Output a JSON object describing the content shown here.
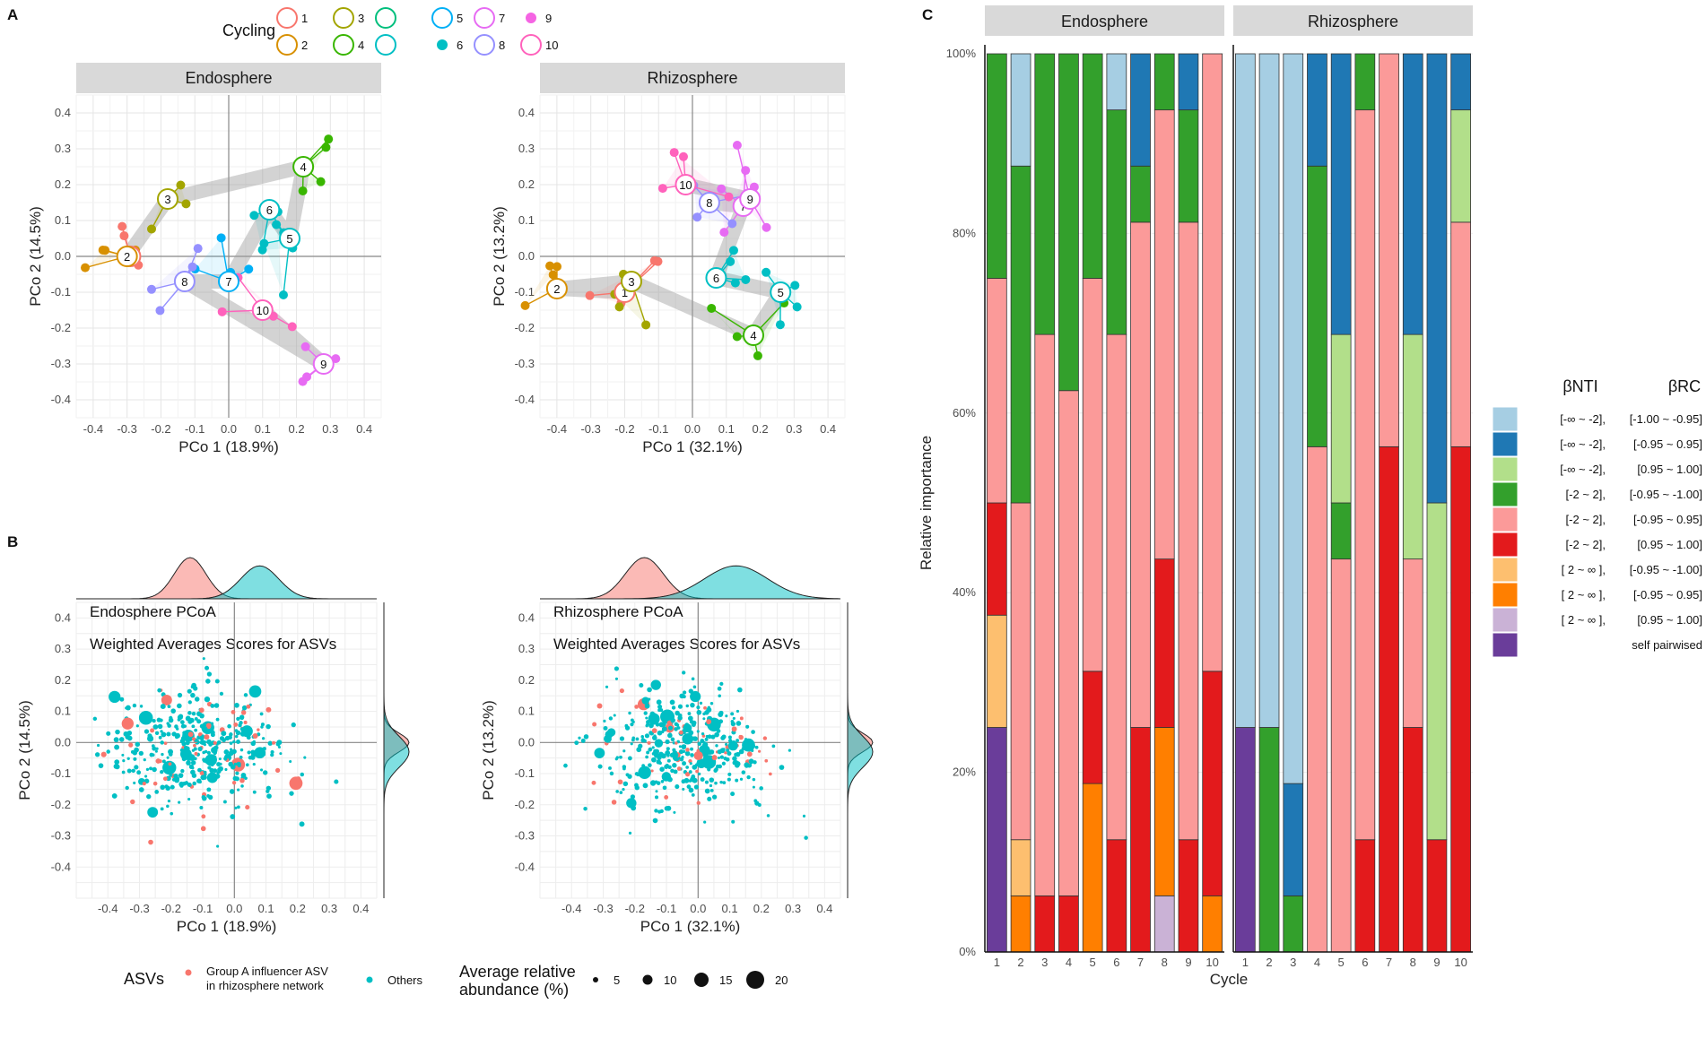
{
  "figure": {
    "panel_labels": [
      "A",
      "B",
      "C"
    ],
    "cycling_legend": {
      "title": "Cycling",
      "items": [
        {
          "label": "1",
          "color": "#F8766D"
        },
        {
          "label": "2",
          "color": "#D89000"
        },
        {
          "label": "3",
          "color": "#A3A500"
        },
        {
          "label": "4",
          "color": "#39B600"
        },
        {
          "label": "",
          "color": "#00BF7D"
        },
        {
          "label": "",
          "color": "#00BFC4"
        },
        {
          "label": "5",
          "color": "#00B0F6"
        },
        {
          "label": "6",
          "color": "#00BFC4"
        },
        {
          "label": "7",
          "color": "#E76BF3"
        },
        {
          "label": "8",
          "color": "#9590FF"
        },
        {
          "label": "9",
          "color": "#F564E3"
        },
        {
          "label": "10",
          "color": "#FF62BC"
        }
      ]
    },
    "asv_legend": {
      "title": "ASVs",
      "group_a_line1": "Group A influencer ASV",
      "group_a_line2": "in rhizosphere network",
      "others": "Others",
      "group_a_color": "#F8766D",
      "others_color": "#00BFC4"
    },
    "size_legend": {
      "title_line1": "Average relative",
      "title_line2": "abundance (%)",
      "sizes": [
        "5",
        "10",
        "15",
        "20"
      ]
    },
    "ordination_A": [
      {
        "strip": "Endosphere",
        "xlabel": "PCo 1 (18.9%)",
        "ylabel": "PCo 2 (14.5%)",
        "xticks": [
          "-0.4",
          "-0.3",
          "-0.2",
          "-0.1",
          "0.0",
          "0.1",
          "0.2",
          "0.3",
          "0.4"
        ],
        "yticks": [
          "0.4",
          "0.3",
          "0.2",
          "0.1",
          "0.0",
          "-0.1",
          "-0.2",
          "-0.3",
          "-0.4"
        ]
      },
      {
        "strip": "Rhizosphere",
        "xlabel": "PCo 1 (32.1%)",
        "ylabel": "PCo 2 (13.2%)",
        "xticks": [
          "-0.4",
          "-0.3",
          "-0.2",
          "-0.1",
          "0.0",
          "0.1",
          "0.2",
          "0.3",
          "0.4"
        ],
        "yticks": [
          "0.4",
          "0.3",
          "0.2",
          "0.1",
          "0.0",
          "-0.1",
          "-0.2",
          "-0.3",
          "-0.4"
        ]
      }
    ],
    "ordination_B": [
      {
        "title": "Endosphere PCoA",
        "subtitle": "Weighted Averages Scores for ASVs",
        "xlabel": "PCo 1 (18.9%)",
        "ylabel": "PCo 2 (14.5%)"
      },
      {
        "title": "Rhizosphere PCoA",
        "subtitle": "Weighted Averages Scores for ASVs",
        "xlabel": "PCo 1 (32.1%)",
        "ylabel": "PCo 2 (13.2%)"
      }
    ]
  },
  "chart_data": [
    {
      "type": "scatter",
      "panel": "A-Endosphere",
      "title": "Endosphere",
      "xlabel": "PCo 1 (18.9%)",
      "ylabel": "PCo 2 (14.5%)",
      "xlim": [
        -0.45,
        0.45
      ],
      "ylim": [
        -0.45,
        0.45
      ],
      "centroids": [
        {
          "label": "1",
          "x": -0.29,
          "y": 0.0,
          "color": "#F8766D"
        },
        {
          "label": "2",
          "x": -0.3,
          "y": 0.0,
          "color": "#D89000"
        },
        {
          "label": "3",
          "x": -0.18,
          "y": 0.16,
          "color": "#A3A500"
        },
        {
          "label": "4",
          "x": 0.22,
          "y": 0.25,
          "color": "#39B600"
        },
        {
          "label": "5",
          "x": 0.18,
          "y": 0.05,
          "color": "#00BFC4"
        },
        {
          "label": "6",
          "x": 0.12,
          "y": 0.13,
          "color": "#00BFC4"
        },
        {
          "label": "7",
          "x": 0.0,
          "y": -0.07,
          "color": "#00B0F6"
        },
        {
          "label": "8",
          "x": -0.13,
          "y": -0.07,
          "color": "#9590FF"
        },
        {
          "label": "9",
          "x": 0.28,
          "y": -0.3,
          "color": "#E76BF3"
        },
        {
          "label": "10",
          "x": 0.1,
          "y": -0.15,
          "color": "#FF62BC"
        }
      ]
    },
    {
      "type": "scatter",
      "panel": "A-Rhizosphere",
      "title": "Rhizosphere",
      "xlabel": "PCo 1 (32.1%)",
      "ylabel": "PCo 2 (13.2%)",
      "xlim": [
        -0.45,
        0.45
      ],
      "ylim": [
        -0.45,
        0.45
      ],
      "centroids": [
        {
          "label": "1",
          "x": -0.2,
          "y": -0.1,
          "color": "#F8766D"
        },
        {
          "label": "2",
          "x": -0.4,
          "y": -0.09,
          "color": "#D89000"
        },
        {
          "label": "3",
          "x": -0.18,
          "y": -0.07,
          "color": "#A3A500"
        },
        {
          "label": "4",
          "x": 0.18,
          "y": -0.22,
          "color": "#39B600"
        },
        {
          "label": "5",
          "x": 0.26,
          "y": -0.1,
          "color": "#00BFC4"
        },
        {
          "label": "6",
          "x": 0.07,
          "y": -0.06,
          "color": "#00BFC4"
        },
        {
          "label": "7",
          "x": 0.15,
          "y": 0.14,
          "color": "#E76BF3"
        },
        {
          "label": "8",
          "x": 0.05,
          "y": 0.15,
          "color": "#9590FF"
        },
        {
          "label": "9",
          "x": 0.17,
          "y": 0.16,
          "color": "#E76BF3"
        },
        {
          "label": "10",
          "x": -0.02,
          "y": 0.2,
          "color": "#FF62BC"
        }
      ]
    },
    {
      "type": "scatter",
      "panel": "B-Endosphere",
      "title": "Endosphere PCoA",
      "subtitle": "Weighted Averages Scores for ASVs",
      "xlabel": "PCo 1 (18.9%)",
      "ylabel": "PCo 2 (14.5%)",
      "xlim": [
        -0.5,
        0.45
      ],
      "ylim": [
        -0.5,
        0.45
      ]
    },
    {
      "type": "scatter",
      "panel": "B-Rhizosphere",
      "title": "Rhizosphere PCoA",
      "subtitle": "Weighted Averages Scores for ASVs",
      "xlabel": "PCo 1 (32.1%)",
      "ylabel": "PCo 2 (13.2%)",
      "xlim": [
        -0.5,
        0.45
      ],
      "ylim": [
        -0.5,
        0.45
      ]
    },
    {
      "type": "bar",
      "panel": "C",
      "stacked": true,
      "facets": [
        "Endosphere",
        "Rhizosphere"
      ],
      "categories": [
        "1",
        "2",
        "3",
        "4",
        "5",
        "6",
        "7",
        "8",
        "9",
        "10"
      ],
      "xlabel": "Cycle",
      "ylabel": "Relative importance",
      "ylim": [
        0,
        100
      ],
      "yticks": [
        "0%",
        "20%",
        "40%",
        "60%",
        "80%",
        "100%"
      ],
      "legend": {
        "header_bnti": "βNTI",
        "header_brc": "βRC",
        "entries": [
          {
            "key": "A",
            "bnti": "[-∞ ~ -2],",
            "brc": "[-1.00 ~ -0.95]",
            "color": "#A6CEE3"
          },
          {
            "key": "B",
            "bnti": "[-∞ ~ -2],",
            "brc": "[-0.95 ~ 0.95]",
            "color": "#1F78B4"
          },
          {
            "key": "C",
            "bnti": "[-∞ ~ -2],",
            "brc": "[0.95 ~ 1.00]",
            "color": "#B2DF8A"
          },
          {
            "key": "D",
            "bnti": "[-2 ~ 2],",
            "brc": "[-0.95 ~ -1.00]",
            "color": "#33A02C"
          },
          {
            "key": "E",
            "bnti": "[-2 ~ 2],",
            "brc": "[-0.95 ~ 0.95]",
            "color": "#FB9A99"
          },
          {
            "key": "F",
            "bnti": "[-2 ~ 2],",
            "brc": "[0.95 ~ 1.00]",
            "color": "#E31A1C"
          },
          {
            "key": "G",
            "bnti": "[ 2 ~ ∞ ],",
            "brc": "[-0.95 ~ -1.00]",
            "color": "#FDBF6F"
          },
          {
            "key": "H",
            "bnti": "[ 2 ~ ∞ ],",
            "brc": "[-0.95 ~ 0.95]",
            "color": "#FF7F00"
          },
          {
            "key": "I",
            "bnti": "[ 2 ~ ∞ ],",
            "brc": "[0.95 ~ 1.00]",
            "color": "#CAB2D6"
          },
          {
            "key": "J",
            "bnti": "",
            "brc": "self pairwised",
            "color": "#6A3D9A"
          }
        ]
      },
      "series": {
        "Endosphere": [
          [
            [
              "J",
              25
            ],
            [
              "G",
              12.5
            ],
            [
              "F",
              12.5
            ],
            [
              "E",
              25
            ],
            [
              "D",
              25
            ]
          ],
          [
            [
              "H",
              6.25
            ],
            [
              "G",
              6.25
            ],
            [
              "E",
              37.5
            ],
            [
              "D",
              37.5
            ],
            [
              "A",
              12.5
            ]
          ],
          [
            [
              "F",
              6.25
            ],
            [
              "E",
              62.5
            ],
            [
              "D",
              31.25
            ]
          ],
          [
            [
              "F",
              6.25
            ],
            [
              "E",
              56.25
            ],
            [
              "D",
              37.5
            ]
          ],
          [
            [
              "H",
              18.75
            ],
            [
              "F",
              12.5
            ],
            [
              "E",
              43.75
            ],
            [
              "D",
              25
            ]
          ],
          [
            [
              "F",
              12.5
            ],
            [
              "E",
              56.25
            ],
            [
              "D",
              25
            ],
            [
              "A",
              6.25
            ]
          ],
          [
            [
              "F",
              25
            ],
            [
              "E",
              56.25
            ],
            [
              "D",
              6.25
            ],
            [
              "B",
              12.5
            ]
          ],
          [
            [
              "I",
              6.25
            ],
            [
              "H",
              18.75
            ],
            [
              "F",
              18.75
            ],
            [
              "E",
              50
            ],
            [
              "D",
              6.25
            ]
          ],
          [
            [
              "F",
              12.5
            ],
            [
              "E",
              68.75
            ],
            [
              "D",
              12.5
            ],
            [
              "B",
              6.25
            ]
          ],
          [
            [
              "H",
              6.25
            ],
            [
              "F",
              25
            ],
            [
              "E",
              68.75
            ]
          ]
        ],
        "Rhizosphere": [
          [
            [
              "J",
              25
            ],
            [
              "A",
              75
            ]
          ],
          [
            [
              "D",
              25
            ],
            [
              "A",
              75
            ]
          ],
          [
            [
              "D",
              6.25
            ],
            [
              "B",
              12.5
            ],
            [
              "A",
              81.25
            ]
          ],
          [
            [
              "E",
              56.25
            ],
            [
              "D",
              31.25
            ],
            [
              "B",
              12.5
            ]
          ],
          [
            [
              "E",
              43.75
            ],
            [
              "D",
              6.25
            ],
            [
              "C",
              18.75
            ],
            [
              "B",
              31.25
            ]
          ],
          [
            [
              "F",
              12.5
            ],
            [
              "E",
              81.25
            ],
            [
              "D",
              6.25
            ]
          ],
          [
            [
              "F",
              56.25
            ],
            [
              "E",
              43.75
            ]
          ],
          [
            [
              "F",
              25
            ],
            [
              "E",
              18.75
            ],
            [
              "C",
              25
            ],
            [
              "B",
              31.25
            ]
          ],
          [
            [
              "F",
              12.5
            ],
            [
              "C",
              37.5
            ],
            [
              "B",
              50
            ]
          ],
          [
            [
              "F",
              56.25
            ],
            [
              "E",
              25
            ],
            [
              "C",
              12.5
            ],
            [
              "B",
              6.25
            ]
          ]
        ]
      }
    }
  ]
}
